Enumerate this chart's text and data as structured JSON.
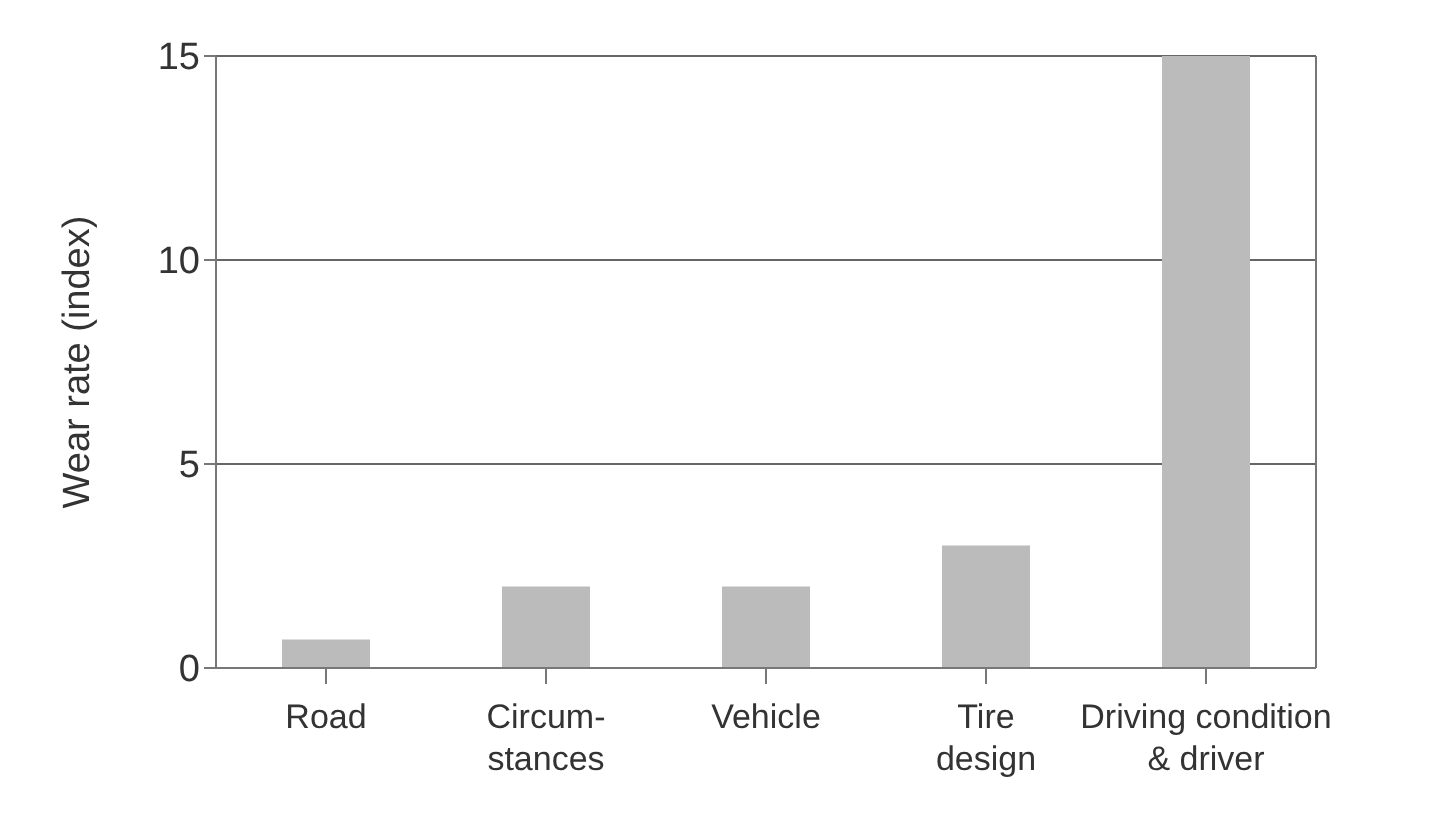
{
  "chart_data": {
    "type": "bar",
    "ylabel": "Wear rate (index)",
    "categories": [
      "Road",
      "Circum-\nstances",
      "Vehicle",
      "Tire\ndesign",
      "Driving condition\n& driver"
    ],
    "values": [
      0.7,
      2,
      2,
      3,
      15
    ],
    "color": "#bbbbbb",
    "ylim": [
      0,
      15
    ],
    "yticks": [
      0,
      5,
      10,
      15
    ],
    "grid": "y"
  }
}
